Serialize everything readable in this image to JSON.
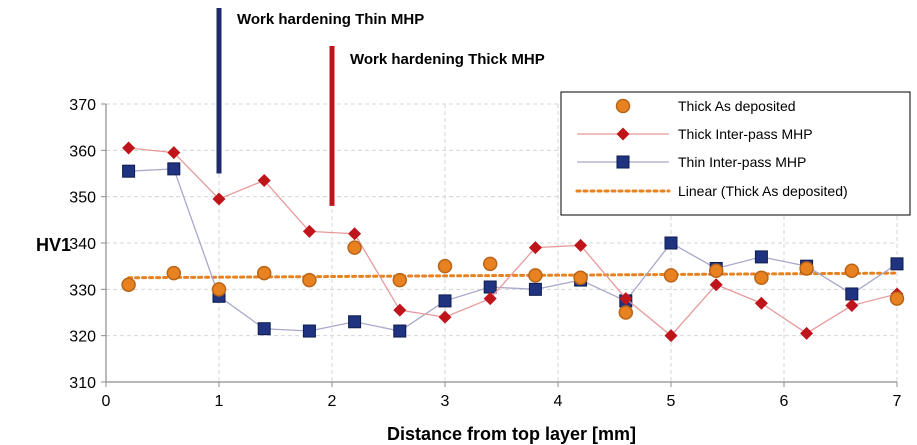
{
  "chart_data": {
    "type": "scatter",
    "xlabel": "Distance from top layer [mm]",
    "ylabel": "HV1",
    "xlim": [
      0,
      7
    ],
    "ylim": [
      310,
      370
    ],
    "x_ticks": [
      0,
      1,
      2,
      3,
      4,
      5,
      6,
      7
    ],
    "y_ticks": [
      310,
      320,
      330,
      340,
      350,
      360,
      370
    ],
    "grid": true,
    "legend_position": "top-right",
    "annotations": [
      {
        "text": "Work hardening Thin MHP",
        "x": 1.0,
        "y_from": 355,
        "color": "#1f2a6b"
      },
      {
        "text": "Work hardening Thick MHP",
        "x": 2.0,
        "y_from": 348,
        "color": "#c0141b"
      }
    ],
    "series": [
      {
        "name": "Thick As deposited",
        "style": "markers",
        "marker": "circle",
        "color": "#e8811f",
        "x": [
          0.2,
          0.6,
          1.0,
          1.4,
          1.8,
          2.2,
          2.6,
          3.0,
          3.4,
          3.8,
          4.2,
          4.6,
          5.0,
          5.4,
          5.8,
          6.2,
          6.6,
          7.0
        ],
        "y": [
          331,
          333.5,
          330,
          333.5,
          332,
          339,
          332,
          335,
          335.5,
          333,
          332.5,
          325,
          333,
          334,
          332.5,
          334.5,
          334,
          328
        ]
      },
      {
        "name": "Thick Inter-pass MHP",
        "style": "line-markers",
        "marker": "diamond",
        "color": "#c0141b",
        "line_color": "#e79a9c",
        "x": [
          0.2,
          0.6,
          1.0,
          1.4,
          1.8,
          2.2,
          2.6,
          3.0,
          3.4,
          3.8,
          4.2,
          4.6,
          5.0,
          5.4,
          5.8,
          6.2,
          6.6,
          7.0
        ],
        "y": [
          360.5,
          359.5,
          349.5,
          353.5,
          342.5,
          342,
          325.5,
          324,
          328,
          339,
          339.5,
          328,
          320,
          331,
          327,
          320.5,
          326.5,
          329
        ]
      },
      {
        "name": "Thin Inter-pass MHP",
        "style": "line-markers",
        "marker": "square",
        "color": "#1f3380",
        "line_color": "#a7a8ca",
        "x": [
          0.2,
          0.6,
          1.0,
          1.4,
          1.8,
          2.2,
          2.6,
          3.0,
          3.4,
          3.8,
          4.2,
          4.6,
          5.0,
          5.4,
          5.8,
          6.2,
          6.6,
          7.0
        ],
        "y": [
          355.5,
          356,
          328.5,
          321.5,
          321,
          323,
          321,
          327.5,
          330.5,
          330,
          332,
          327.5,
          340,
          334.5,
          337,
          335,
          329,
          335.5
        ]
      },
      {
        "name": "Linear (Thick As deposited)",
        "style": "dotted-line",
        "color": "#e8811f",
        "x": [
          0.2,
          7.0
        ],
        "y": [
          332.5,
          333.5
        ]
      }
    ]
  }
}
